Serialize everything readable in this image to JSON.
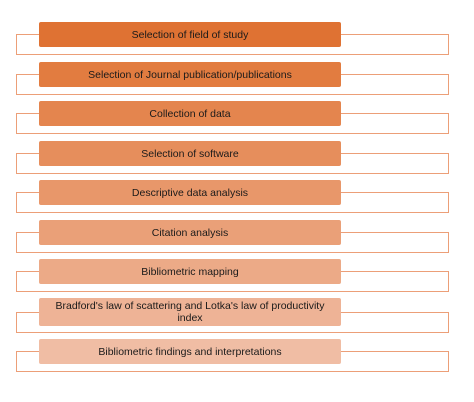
{
  "steps": [
    {
      "label": "Selection of field of study",
      "fill": "#df7233"
    },
    {
      "label": "Selection of Journal publication/publications",
      "fill": "#e27c40"
    },
    {
      "label": "Collection of data",
      "fill": "#e4854e"
    },
    {
      "label": "Selection of software",
      "fill": "#e68e5c"
    },
    {
      "label": "Descriptive data analysis",
      "fill": "#e8976a"
    },
    {
      "label": "Citation analysis",
      "fill": "#eaa078"
    },
    {
      "label": "Bibliometric mapping",
      "fill": "#ecaa87"
    },
    {
      "label": "Bradford's law of scattering and Lotka's law of productivity index",
      "fill": "#eeb396"
    },
    {
      "label": "Bibliometric findings and interpretations",
      "fill": "#f0bda4"
    }
  ],
  "colors": {
    "frame_border": "#ec9f78"
  }
}
